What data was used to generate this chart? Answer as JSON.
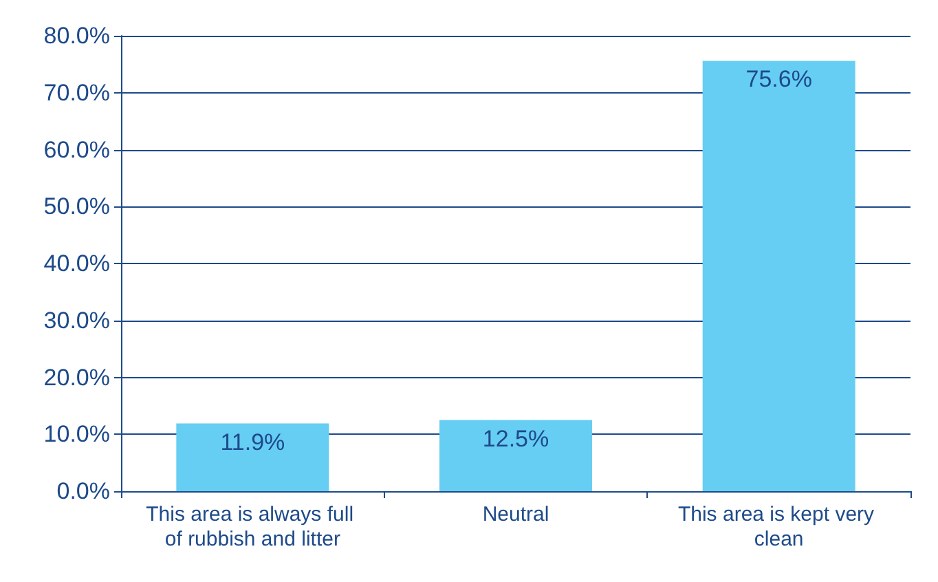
{
  "chart_data": {
    "type": "bar",
    "categories": [
      "This area is always full of rubbish and litter",
      "Neutral",
      "This area is kept very clean"
    ],
    "values": [
      11.9,
      12.5,
      75.6
    ],
    "color": "#66cdf3",
    "value_labels": [
      "11.9%",
      "12.5%",
      "75.6%"
    ],
    "ylim": [
      0,
      80
    ],
    "yticks": [
      {
        "value": 0,
        "label": "0.0%"
      },
      {
        "value": 10,
        "label": "10.0%"
      },
      {
        "value": 20,
        "label": "20.0%"
      },
      {
        "value": 30,
        "label": "30.0%"
      },
      {
        "value": 40,
        "label": "40.0%"
      },
      {
        "value": 50,
        "label": "50.0%"
      },
      {
        "value": 60,
        "label": "60.0%"
      },
      {
        "value": 70,
        "label": "70.0%"
      },
      {
        "value": 80,
        "label": "80.0%"
      }
    ],
    "grid": true
  }
}
